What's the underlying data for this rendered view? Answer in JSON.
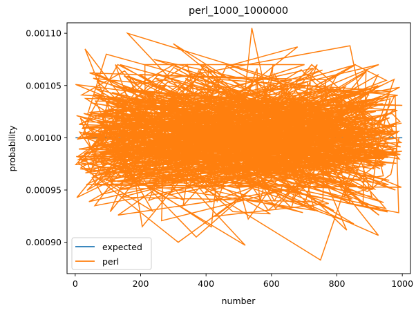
{
  "chart_data": {
    "type": "line",
    "title": "perl_1000_1000000",
    "xlabel": "number",
    "ylabel": "probability",
    "xlim": [
      -25,
      1025
    ],
    "ylim": [
      0.00087,
      0.00111
    ],
    "xticks": [
      0,
      200,
      400,
      600,
      800,
      1000
    ],
    "xtick_labels": [
      "0",
      "200",
      "400",
      "600",
      "800",
      "1000"
    ],
    "yticks": [
      0.0009,
      0.00095,
      0.001,
      0.00105,
      0.0011
    ],
    "ytick_labels": [
      "0.00090",
      "0.00095",
      "0.00100",
      "0.00105",
      "0.00110"
    ],
    "grid": false,
    "legend_position": "lower-left",
    "series": [
      {
        "name": "expected",
        "color": "#1f77b4",
        "x": [
          1,
          1000
        ],
        "y": [
          0.001,
          0.001
        ]
      },
      {
        "name": "perl",
        "color": "#ff7f0e",
        "note_points": "Dense noisy line over numbers 1..1000; extreme points read from chart",
        "x": [
          1,
          30,
          60,
          95,
          120,
          160,
          205,
          240,
          300,
          330,
          370,
          395,
          430,
          470,
          520,
          540,
          580,
          640,
          680,
          700,
          750,
          800,
          840,
          880,
          925,
          965,
          1000
        ],
        "y": [
          0.001051,
          0.001085,
          0.000935,
          0.00108,
          0.000975,
          0.0011,
          0.000915,
          0.001075,
          0.00109,
          0.000935,
          0.000905,
          0.00107,
          0.000925,
          0.00102,
          0.000897,
          0.001105,
          0.000955,
          0.00103,
          0.001087,
          0.000935,
          0.000883,
          0.00106,
          0.001088,
          0.000935,
          0.00106,
          0.000965,
          0.001031
        ]
      }
    ]
  }
}
